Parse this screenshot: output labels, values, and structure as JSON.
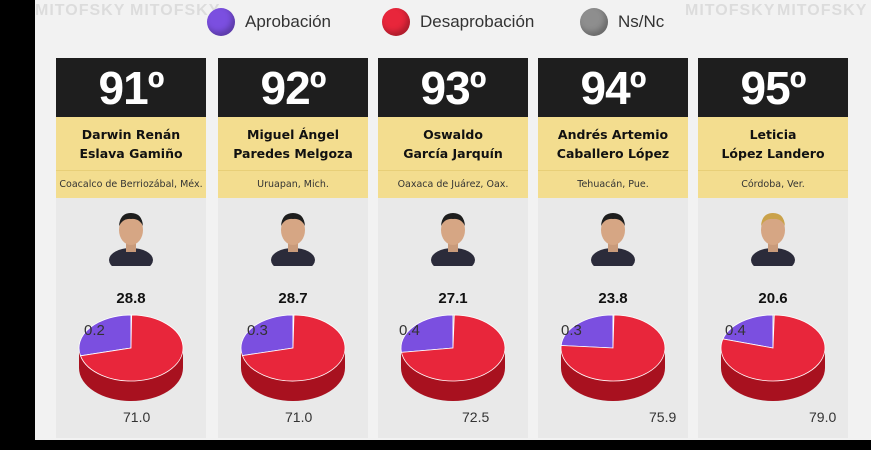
{
  "legend": [
    {
      "label": "Aprobación",
      "color": "#7b4fe0"
    },
    {
      "label": "Desaprobación",
      "color": "#e8263b"
    },
    {
      "label": "Ns/Nc",
      "color": "#8e8e8e"
    }
  ],
  "watermark": "MITOFSKY",
  "chart_data": {
    "type": "pie",
    "categories": [
      "Aprobación",
      "Desaprobación",
      "Ns/Nc"
    ],
    "colors": [
      "#7b4fe0",
      "#e8263b",
      "#8e8e8e"
    ],
    "items": [
      {
        "rank": "91º",
        "name_line1": "Darwin Renán",
        "name_line2": "Eslava Gamiño",
        "city": "Coacalco de Berriozábal, Méx.",
        "values": [
          28.8,
          71.0,
          0.2
        ],
        "labels": [
          "28.8",
          "71.0",
          "0.2"
        ]
      },
      {
        "rank": "92º",
        "name_line1": "Miguel Ángel",
        "name_line2": "Paredes Melgoza",
        "city": "Uruapan, Mich.",
        "values": [
          28.7,
          71.0,
          0.3
        ],
        "labels": [
          "28.7",
          "71.0",
          "0.3"
        ]
      },
      {
        "rank": "93º",
        "name_line1": "Oswaldo",
        "name_line2": "García Jarquín",
        "city": "Oaxaca de Juárez, Oax.",
        "values": [
          27.1,
          72.5,
          0.4
        ],
        "labels": [
          "27.1",
          "72.5",
          "0.4"
        ]
      },
      {
        "rank": "94º",
        "name_line1": "Andrés Artemio",
        "name_line2": "Caballero López",
        "city": "Tehuacán, Pue.",
        "values": [
          23.8,
          75.9,
          0.3
        ],
        "labels": [
          "23.8",
          "75.9",
          "0.3"
        ]
      },
      {
        "rank": "95º",
        "name_line1": "Leticia",
        "name_line2": "López Landero",
        "city": "Córdoba, Ver.",
        "values": [
          20.6,
          79.0,
          0.4
        ],
        "labels": [
          "20.6",
          "79.0",
          "0.4"
        ]
      }
    ]
  }
}
